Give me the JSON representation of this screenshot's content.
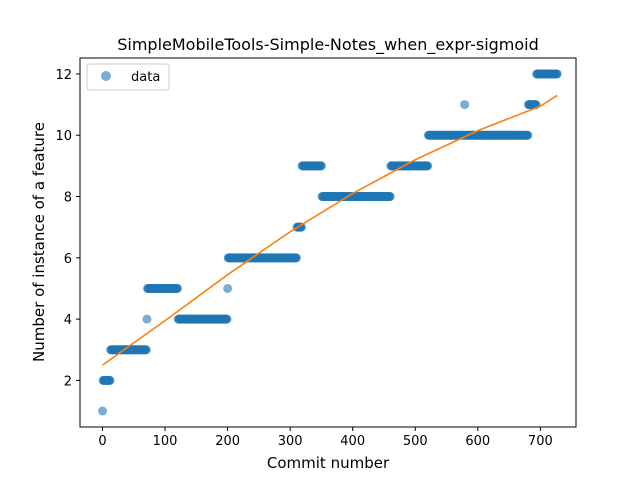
{
  "chart_data": {
    "type": "scatter",
    "title": "SimpleMobileTools-Simple-Notes_when_expr-sigmoid",
    "xlabel": "Commit number",
    "ylabel": "Number of instance of a feature",
    "xlim": [
      -36,
      757
    ],
    "ylim": [
      0.48,
      12.52
    ],
    "xticks": [
      0,
      100,
      200,
      300,
      400,
      500,
      600,
      700
    ],
    "yticks": [
      2,
      4,
      6,
      8,
      10,
      12
    ],
    "grid": false,
    "legend": {
      "position": "top-left",
      "entries": [
        "data"
      ]
    },
    "series": [
      {
        "name": "data",
        "kind": "points",
        "color": "#1f77b4",
        "segments": [
          {
            "x_start": 0,
            "x_end": 0,
            "y": 1
          },
          {
            "x_start": 1,
            "x_end": 12,
            "y": 2
          },
          {
            "x_start": 13,
            "x_end": 70,
            "y": 3
          },
          {
            "x_start": 71,
            "x_end": 71,
            "y": 4
          },
          {
            "x_start": 72,
            "x_end": 120,
            "y": 5
          },
          {
            "x_start": 121,
            "x_end": 199,
            "y": 4
          },
          {
            "x_start": 200,
            "x_end": 200,
            "y": 5
          },
          {
            "x_start": 201,
            "x_end": 310,
            "y": 6
          },
          {
            "x_start": 311,
            "x_end": 318,
            "y": 7
          },
          {
            "x_start": 319,
            "x_end": 350,
            "y": 9
          },
          {
            "x_start": 351,
            "x_end": 460,
            "y": 8
          },
          {
            "x_start": 461,
            "x_end": 520,
            "y": 9
          },
          {
            "x_start": 521,
            "x_end": 578,
            "y": 10
          },
          {
            "x_start": 579,
            "x_end": 579,
            "y": 11
          },
          {
            "x_start": 580,
            "x_end": 680,
            "y": 10
          },
          {
            "x_start": 681,
            "x_end": 693,
            "y": 11
          },
          {
            "x_start": 694,
            "x_end": 727,
            "y": 12
          }
        ]
      },
      {
        "kind": "fit-line",
        "color": "#ff7f0e",
        "x": [
          0,
          100,
          200,
          300,
          400,
          500,
          600,
          700,
          727
        ],
        "y": [
          2.5,
          3.95,
          5.45,
          6.85,
          8.1,
          9.2,
          10.15,
          10.95,
          11.3
        ]
      }
    ]
  }
}
